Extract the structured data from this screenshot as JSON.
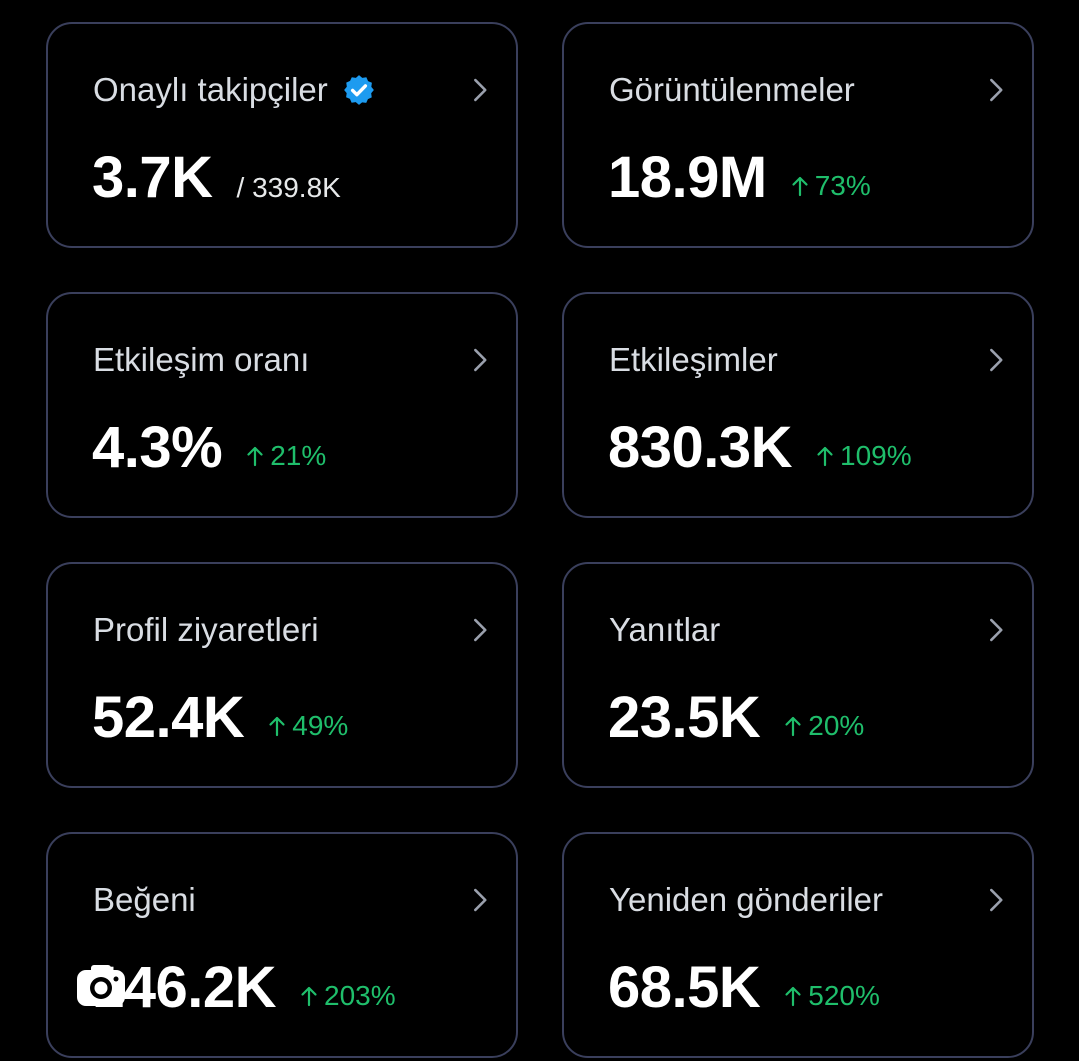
{
  "cards": [
    {
      "title": "Onaylı takipçiler",
      "value": "3.7K",
      "sub": "/ 339.8K",
      "verified": true
    },
    {
      "title": "Görüntülenmeler",
      "value": "18.9M",
      "change": "73%"
    },
    {
      "title": "Etkileşim oranı",
      "value": "4.3%",
      "change": "21%"
    },
    {
      "title": "Etkileşimler",
      "value": "830.3K",
      "change": "109%"
    },
    {
      "title": "Profil ziyaretleri",
      "value": "52.4K",
      "change": "49%"
    },
    {
      "title": "Yanıtlar",
      "value": "23.5K",
      "change": "20%"
    },
    {
      "title": "Beğeni",
      "value": "146.2K",
      "change": "203%"
    },
    {
      "title": "Yeniden gönderiler",
      "value": "68.5K",
      "change": "520%"
    }
  ],
  "colors": {
    "background": "#000000",
    "card_border": "#3a3f5c",
    "positive": "#1fbe6b",
    "verified_blue": "#1d9bf0",
    "text": "#ffffff"
  },
  "icons": {
    "chevron": "chevron-right-icon",
    "verified": "verified-badge-icon",
    "trend": "arrow-up-icon",
    "overlay": "camera-icon"
  }
}
